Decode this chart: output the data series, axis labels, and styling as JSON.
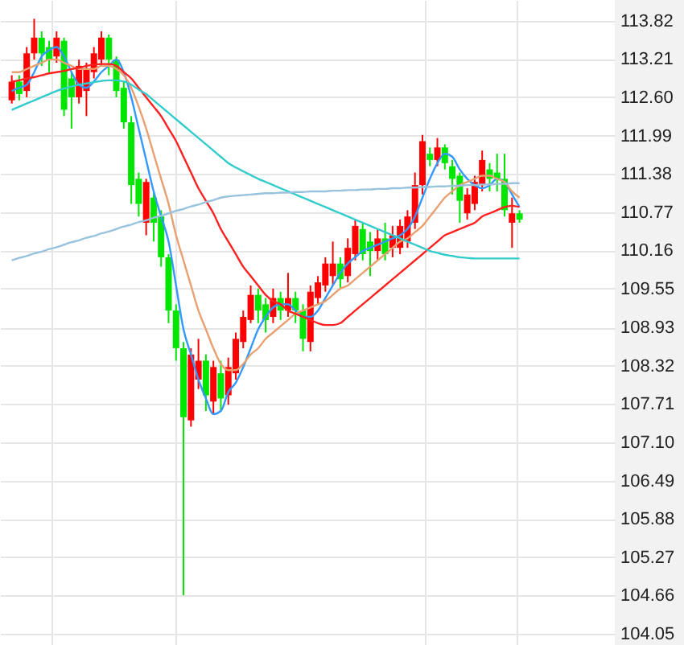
{
  "chart_data": {
    "type": "candlestick",
    "categories": [
      null,
      null,
      null,
      null,
      null,
      null,
      null,
      null,
      null,
      null,
      null,
      null,
      null,
      null,
      null,
      null,
      null,
      null,
      null,
      null,
      null,
      null,
      null,
      null,
      null,
      null,
      null,
      null,
      null,
      null,
      null,
      null,
      null,
      null,
      null,
      null,
      null,
      null,
      null,
      null,
      null,
      null,
      null,
      null,
      null,
      null,
      null,
      null,
      null,
      null,
      null,
      null,
      null,
      null,
      null,
      null,
      null,
      null,
      null,
      null,
      null,
      null,
      null,
      null,
      null,
      null,
      null,
      null,
      null
    ],
    "ohlc": [
      [
        112.55,
        112.95,
        112.5,
        112.85
      ],
      [
        112.85,
        112.95,
        112.55,
        112.65
      ],
      [
        112.7,
        113.4,
        112.6,
        113.3
      ],
      [
        113.3,
        113.85,
        113.2,
        113.55
      ],
      [
        113.55,
        113.65,
        113.1,
        113.3
      ],
      [
        113.4,
        113.5,
        113.0,
        113.2
      ],
      [
        113.25,
        113.65,
        113.15,
        113.55
      ],
      [
        113.5,
        113.55,
        112.3,
        112.4
      ],
      [
        112.9,
        113.0,
        112.1,
        112.6
      ],
      [
        112.6,
        113.2,
        112.5,
        113.1
      ],
      [
        112.7,
        113.15,
        112.3,
        113.05
      ],
      [
        113.0,
        113.4,
        112.9,
        113.3
      ],
      [
        113.2,
        113.65,
        113.1,
        113.55
      ],
      [
        113.55,
        113.6,
        112.95,
        113.2
      ],
      [
        113.2,
        113.25,
        112.6,
        112.7
      ],
      [
        112.75,
        112.85,
        112.1,
        112.2
      ],
      [
        112.2,
        112.3,
        110.9,
        111.2
      ],
      [
        111.3,
        111.4,
        110.7,
        110.9
      ],
      [
        110.6,
        111.3,
        110.4,
        111.25
      ],
      [
        111.0,
        111.1,
        110.3,
        110.6
      ],
      [
        110.7,
        110.8,
        109.9,
        110.05
      ],
      [
        110.05,
        110.1,
        109.0,
        109.2
      ],
      [
        109.2,
        109.3,
        108.4,
        108.6
      ],
      [
        108.6,
        108.7,
        104.66,
        107.5
      ],
      [
        107.45,
        108.6,
        107.35,
        108.5
      ],
      [
        108.1,
        108.75,
        107.95,
        108.4
      ],
      [
        108.4,
        108.5,
        107.6,
        107.85
      ],
      [
        107.75,
        108.4,
        107.55,
        108.3
      ],
      [
        108.2,
        108.4,
        107.6,
        107.8
      ],
      [
        107.85,
        108.45,
        107.7,
        108.3
      ],
      [
        108.2,
        108.85,
        108.1,
        108.75
      ],
      [
        108.7,
        109.2,
        108.6,
        109.1
      ],
      [
        109.05,
        109.6,
        109.0,
        109.45
      ],
      [
        109.45,
        109.55,
        109.0,
        109.2
      ],
      [
        109.3,
        109.4,
        108.85,
        109.05
      ],
      [
        109.1,
        109.55,
        109.0,
        109.4
      ],
      [
        109.4,
        109.5,
        109.05,
        109.2
      ],
      [
        109.2,
        109.8,
        109.1,
        109.4
      ],
      [
        109.4,
        109.5,
        109.0,
        109.2
      ],
      [
        109.2,
        109.3,
        108.55,
        108.75
      ],
      [
        108.7,
        109.6,
        108.55,
        109.5
      ],
      [
        109.4,
        109.75,
        109.3,
        109.65
      ],
      [
        109.6,
        110.05,
        109.5,
        109.95
      ],
      [
        109.75,
        110.3,
        109.6,
        109.95
      ],
      [
        109.95,
        110.05,
        109.55,
        109.7
      ],
      [
        109.75,
        110.35,
        109.65,
        110.2
      ],
      [
        110.1,
        110.65,
        110.0,
        110.55
      ],
      [
        110.5,
        110.6,
        110.0,
        110.1
      ],
      [
        110.3,
        110.45,
        109.75,
        110.15
      ],
      [
        110.15,
        110.5,
        110.0,
        110.35
      ],
      [
        110.35,
        110.6,
        110.0,
        110.1
      ],
      [
        110.2,
        110.55,
        110.05,
        110.4
      ],
      [
        110.2,
        110.65,
        110.1,
        110.55
      ],
      [
        110.3,
        110.8,
        110.2,
        110.7
      ],
      [
        110.6,
        111.4,
        110.5,
        111.2
      ],
      [
        111.2,
        112.0,
        111.05,
        111.9
      ],
      [
        111.7,
        111.8,
        111.5,
        111.6
      ],
      [
        111.6,
        111.95,
        111.5,
        111.8
      ],
      [
        111.8,
        111.85,
        111.45,
        111.55
      ],
      [
        111.5,
        111.6,
        111.05,
        111.3
      ],
      [
        111.35,
        111.4,
        110.6,
        110.95
      ],
      [
        110.75,
        111.15,
        110.65,
        111.05
      ],
      [
        110.9,
        111.35,
        110.8,
        111.25
      ],
      [
        111.2,
        111.75,
        111.1,
        111.6
      ],
      [
        111.45,
        111.55,
        111.1,
        111.3
      ],
      [
        111.4,
        111.7,
        111.1,
        111.3
      ],
      [
        111.3,
        111.7,
        110.7,
        110.8
      ],
      [
        110.6,
        111.0,
        110.2,
        110.75
      ],
      [
        110.75,
        110.8,
        110.6,
        110.65
      ]
    ],
    "colors": [
      "#ff0000",
      "#00e600",
      "#ff0000",
      "#ff0000",
      "#00e600",
      "#00e600",
      "#ff0000",
      "#00e600",
      "#00e600",
      "#ff0000",
      "#ff0000",
      "#ff0000",
      "#ff0000",
      "#00e600",
      "#00e600",
      "#00e600",
      "#00e600",
      "#00e600",
      "#ff0000",
      "#00e600",
      "#00e600",
      "#00e600",
      "#00e600",
      "#00e600",
      "#ff0000",
      "#ff0000",
      "#00e600",
      "#ff0000",
      "#00e600",
      "#ff0000",
      "#ff0000",
      "#ff0000",
      "#ff0000",
      "#00e600",
      "#00e600",
      "#ff0000",
      "#00e600",
      "#ff0000",
      "#00e600",
      "#00e600",
      "#ff0000",
      "#ff0000",
      "#ff0000",
      "#ff0000",
      "#00e600",
      "#ff0000",
      "#ff0000",
      "#00e600",
      "#00e600",
      "#ff0000",
      "#00e600",
      "#ff0000",
      "#ff0000",
      "#ff0000",
      "#ff0000",
      "#ff0000",
      "#00e600",
      "#ff0000",
      "#00e600",
      "#00e600",
      "#00e600",
      "#ff0000",
      "#ff0000",
      "#ff0000",
      "#00e600",
      "#00e600",
      "#00e600",
      "#ff0000",
      "#00e600"
    ],
    "series": [
      {
        "type": "line",
        "color": "#3399ff",
        "values": [
          112.7,
          112.75,
          112.8,
          113.0,
          113.25,
          113.35,
          113.4,
          113.25,
          113.0,
          112.8,
          112.75,
          112.85,
          113.0,
          113.1,
          113.2,
          113.0,
          112.6,
          112.1,
          111.6,
          111.1,
          110.7,
          110.3,
          109.6,
          108.9,
          108.5,
          108.1,
          107.8,
          107.55,
          107.6,
          107.9,
          108.05,
          108.3,
          108.6,
          108.9,
          109.1,
          109.25,
          109.3,
          109.3,
          109.2,
          109.1,
          109.1,
          109.2,
          109.4,
          109.6,
          109.8,
          109.95,
          110.05,
          110.15,
          110.2,
          110.25,
          110.3,
          110.35,
          110.4,
          110.5,
          110.7,
          111.0,
          111.3,
          111.55,
          111.7,
          111.65,
          111.45,
          111.3,
          111.2,
          111.15,
          111.2,
          111.3,
          111.25,
          111.05,
          110.85
        ]
      },
      {
        "type": "line",
        "color": "#e8a070",
        "values": [
          113.0,
          113.0,
          113.05,
          113.1,
          113.15,
          113.2,
          113.2,
          113.15,
          113.1,
          113.05,
          113.05,
          113.05,
          113.1,
          113.1,
          113.05,
          112.95,
          112.75,
          112.45,
          112.1,
          111.7,
          111.3,
          110.9,
          110.4,
          110.0,
          109.6,
          109.2,
          108.9,
          108.6,
          108.35,
          108.25,
          108.25,
          108.35,
          108.5,
          108.6,
          108.75,
          108.85,
          108.95,
          109.05,
          109.15,
          109.2,
          109.25,
          109.3,
          109.35,
          109.45,
          109.55,
          109.6,
          109.7,
          109.8,
          109.9,
          110.0,
          110.1,
          110.2,
          110.3,
          110.35,
          110.45,
          110.55,
          110.7,
          110.85,
          111.0,
          111.1,
          111.2,
          111.25,
          111.3,
          111.35,
          111.35,
          111.3,
          111.25,
          111.1,
          111.0
        ]
      },
      {
        "type": "line",
        "color": "#ff2020",
        "values": [
          112.85,
          112.87,
          112.9,
          112.92,
          112.95,
          112.98,
          113.0,
          113.02,
          113.05,
          113.07,
          113.1,
          113.12,
          113.13,
          113.13,
          113.1,
          113.0,
          112.9,
          112.75,
          112.6,
          112.45,
          112.3,
          112.1,
          111.9,
          111.65,
          111.4,
          111.15,
          110.95,
          110.75,
          110.5,
          110.3,
          110.1,
          109.9,
          109.75,
          109.6,
          109.45,
          109.35,
          109.3,
          109.2,
          109.15,
          109.1,
          109.05,
          109.0,
          108.97,
          108.97,
          109.0,
          109.1,
          109.2,
          109.3,
          109.4,
          109.5,
          109.6,
          109.7,
          109.8,
          109.9,
          110.0,
          110.1,
          110.2,
          110.3,
          110.4,
          110.45,
          110.5,
          110.55,
          110.6,
          110.7,
          110.75,
          110.8,
          110.85,
          110.87,
          110.85
        ]
      },
      {
        "type": "line",
        "color": "#33cccc",
        "values": [
          112.4,
          112.45,
          112.5,
          112.55,
          112.6,
          112.65,
          112.7,
          112.74,
          112.77,
          112.8,
          112.82,
          112.84,
          112.86,
          112.87,
          112.87,
          112.85,
          112.8,
          112.72,
          112.65,
          112.55,
          112.45,
          112.35,
          112.25,
          112.15,
          112.05,
          111.95,
          111.85,
          111.75,
          111.65,
          111.55,
          111.48,
          111.42,
          111.36,
          111.3,
          111.25,
          111.2,
          111.15,
          111.1,
          111.05,
          111.0,
          110.95,
          110.9,
          110.85,
          110.8,
          110.75,
          110.7,
          110.65,
          110.6,
          110.55,
          110.5,
          110.45,
          110.4,
          110.35,
          110.3,
          110.25,
          110.2,
          110.15,
          110.12,
          110.09,
          110.07,
          110.05,
          110.04,
          110.03,
          110.03,
          110.03,
          110.03,
          110.03,
          110.03,
          110.03
        ]
      },
      {
        "type": "line",
        "color": "#99c2dd",
        "values": [
          110.0,
          110.04,
          110.07,
          110.11,
          110.14,
          110.18,
          110.21,
          110.25,
          110.29,
          110.32,
          110.36,
          110.39,
          110.43,
          110.46,
          110.5,
          110.54,
          110.57,
          110.61,
          110.64,
          110.68,
          110.71,
          110.75,
          110.79,
          110.82,
          110.86,
          110.89,
          110.93,
          110.96,
          111.0,
          111.02,
          111.03,
          111.04,
          111.05,
          111.06,
          111.07,
          111.07,
          111.08,
          111.08,
          111.09,
          111.09,
          111.1,
          111.1,
          111.1,
          111.11,
          111.11,
          111.12,
          111.12,
          111.13,
          111.13,
          111.14,
          111.14,
          111.15,
          111.15,
          111.16,
          111.16,
          111.17,
          111.17,
          111.18,
          111.18,
          111.19,
          111.19,
          111.2,
          111.2,
          111.21,
          111.21,
          111.22,
          111.22,
          111.23,
          111.23
        ]
      }
    ],
    "ylim": [
      103.87,
      114.15
    ],
    "yticks": [
      113.82,
      113.21,
      {
        "value": 112.6,
        "label": "112.60"
      },
      111.99,
      111.38,
      110.77,
      110.16,
      109.55,
      108.93,
      108.32,
      107.71,
      {
        "value": 107.1,
        "label": "107.10"
      },
      106.49,
      105.88,
      105.27,
      104.66,
      104.05
    ],
    "grid": true,
    "tick_labels": "y"
  }
}
